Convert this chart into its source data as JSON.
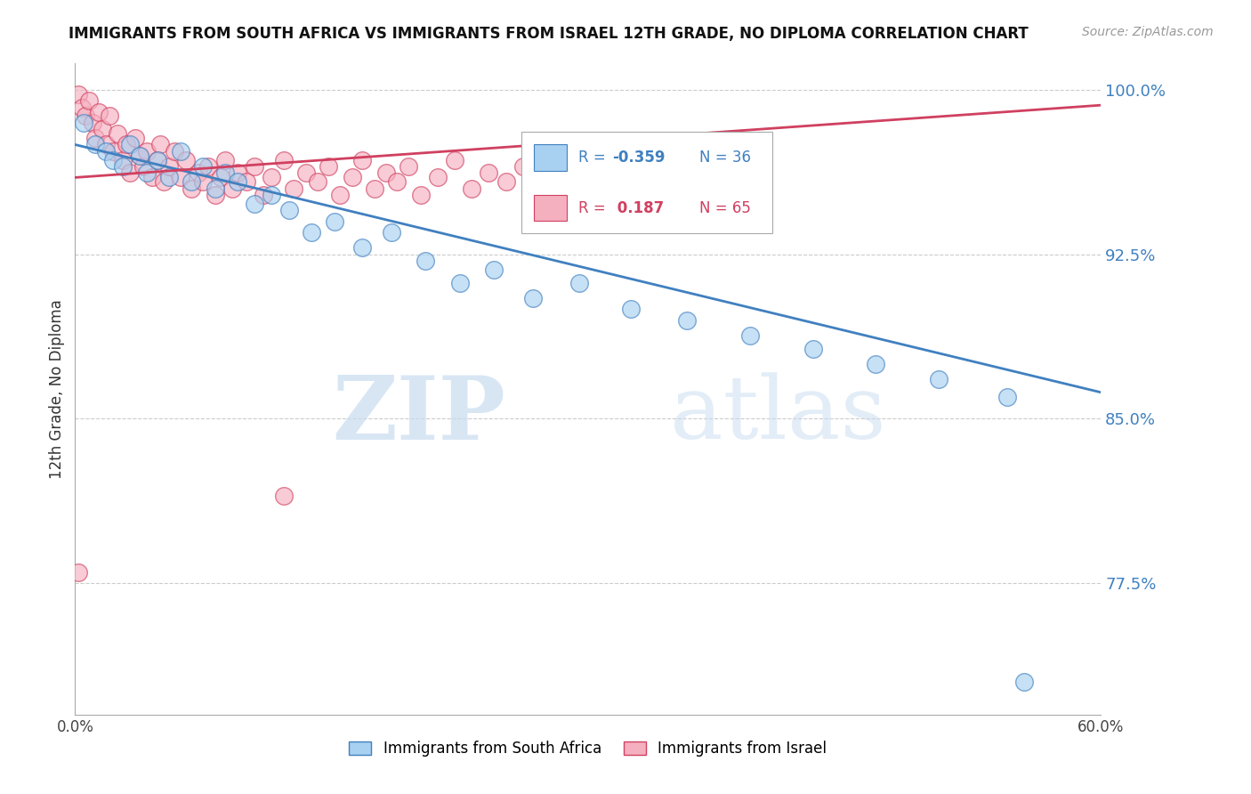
{
  "title": "IMMIGRANTS FROM SOUTH AFRICA VS IMMIGRANTS FROM ISRAEL 12TH GRADE, NO DIPLOMA CORRELATION CHART",
  "source": "Source: ZipAtlas.com",
  "ylabel": "12th Grade, No Diploma",
  "xlim": [
    0.0,
    0.6
  ],
  "ylim": [
    0.715,
    1.012
  ],
  "xticks": [
    0.0,
    0.1,
    0.2,
    0.3,
    0.4,
    0.5,
    0.6
  ],
  "xticklabels": [
    "0.0%",
    "",
    "",
    "",
    "",
    "",
    "60.0%"
  ],
  "yticks": [
    0.775,
    0.85,
    0.925,
    1.0
  ],
  "yticklabels": [
    "77.5%",
    "85.0%",
    "92.5%",
    "100.0%"
  ],
  "blue_R": -0.359,
  "blue_N": 36,
  "pink_R": 0.187,
  "pink_N": 65,
  "blue_color": "#A8D0F0",
  "pink_color": "#F5B0C0",
  "blue_line_color": "#4080C0",
  "pink_line_color": "#D04060",
  "blue_scatter_x": [
    0.005,
    0.012,
    0.018,
    0.022,
    0.028,
    0.032,
    0.038,
    0.042,
    0.048,
    0.055,
    0.062,
    0.068,
    0.075,
    0.082,
    0.088,
    0.095,
    0.105,
    0.115,
    0.125,
    0.138,
    0.152,
    0.168,
    0.185,
    0.205,
    0.225,
    0.245,
    0.268,
    0.295,
    0.325,
    0.358,
    0.395,
    0.432,
    0.468,
    0.505,
    0.545,
    0.555
  ],
  "blue_scatter_y": [
    0.985,
    0.975,
    0.972,
    0.968,
    0.965,
    0.975,
    0.97,
    0.962,
    0.968,
    0.96,
    0.972,
    0.958,
    0.965,
    0.955,
    0.962,
    0.958,
    0.948,
    0.952,
    0.945,
    0.935,
    0.94,
    0.928,
    0.935,
    0.922,
    0.912,
    0.918,
    0.905,
    0.912,
    0.9,
    0.895,
    0.888,
    0.882,
    0.875,
    0.868,
    0.86,
    0.73
  ],
  "pink_scatter_x": [
    0.002,
    0.004,
    0.006,
    0.008,
    0.01,
    0.012,
    0.014,
    0.016,
    0.018,
    0.02,
    0.022,
    0.025,
    0.028,
    0.03,
    0.032,
    0.035,
    0.038,
    0.04,
    0.042,
    0.045,
    0.048,
    0.05,
    0.052,
    0.055,
    0.058,
    0.062,
    0.065,
    0.068,
    0.072,
    0.075,
    0.078,
    0.082,
    0.085,
    0.088,
    0.092,
    0.095,
    0.1,
    0.105,
    0.11,
    0.115,
    0.122,
    0.128,
    0.135,
    0.142,
    0.148,
    0.155,
    0.162,
    0.168,
    0.175,
    0.182,
    0.188,
    0.195,
    0.202,
    0.212,
    0.222,
    0.232,
    0.242,
    0.252,
    0.262,
    0.275,
    0.288,
    0.302,
    0.318,
    0.002,
    0.122
  ],
  "pink_scatter_y": [
    0.998,
    0.992,
    0.988,
    0.995,
    0.985,
    0.978,
    0.99,
    0.982,
    0.975,
    0.988,
    0.972,
    0.98,
    0.968,
    0.975,
    0.962,
    0.978,
    0.97,
    0.965,
    0.972,
    0.96,
    0.968,
    0.975,
    0.958,
    0.965,
    0.972,
    0.96,
    0.968,
    0.955,
    0.962,
    0.958,
    0.965,
    0.952,
    0.96,
    0.968,
    0.955,
    0.962,
    0.958,
    0.965,
    0.952,
    0.96,
    0.968,
    0.955,
    0.962,
    0.958,
    0.965,
    0.952,
    0.96,
    0.968,
    0.955,
    0.962,
    0.958,
    0.965,
    0.952,
    0.96,
    0.968,
    0.955,
    0.962,
    0.958,
    0.965,
    0.952,
    0.96,
    0.968,
    0.955,
    0.78,
    0.815
  ],
  "blue_trend_x": [
    0.0,
    0.6
  ],
  "blue_trend_y": [
    0.975,
    0.862
  ],
  "pink_trend_x": [
    0.0,
    0.6
  ],
  "pink_trend_y": [
    0.96,
    0.993
  ],
  "watermark_zip": "ZIP",
  "watermark_atlas": "atlas",
  "background_color": "#FFFFFF",
  "grid_color": "#CCCCCC",
  "legend_blue_text": "R = -0.359   N = 36",
  "legend_pink_text": "R =  0.187   N = 65",
  "bottom_legend_blue": "Immigrants from South Africa",
  "bottom_legend_pink": "Immigrants from Israel"
}
